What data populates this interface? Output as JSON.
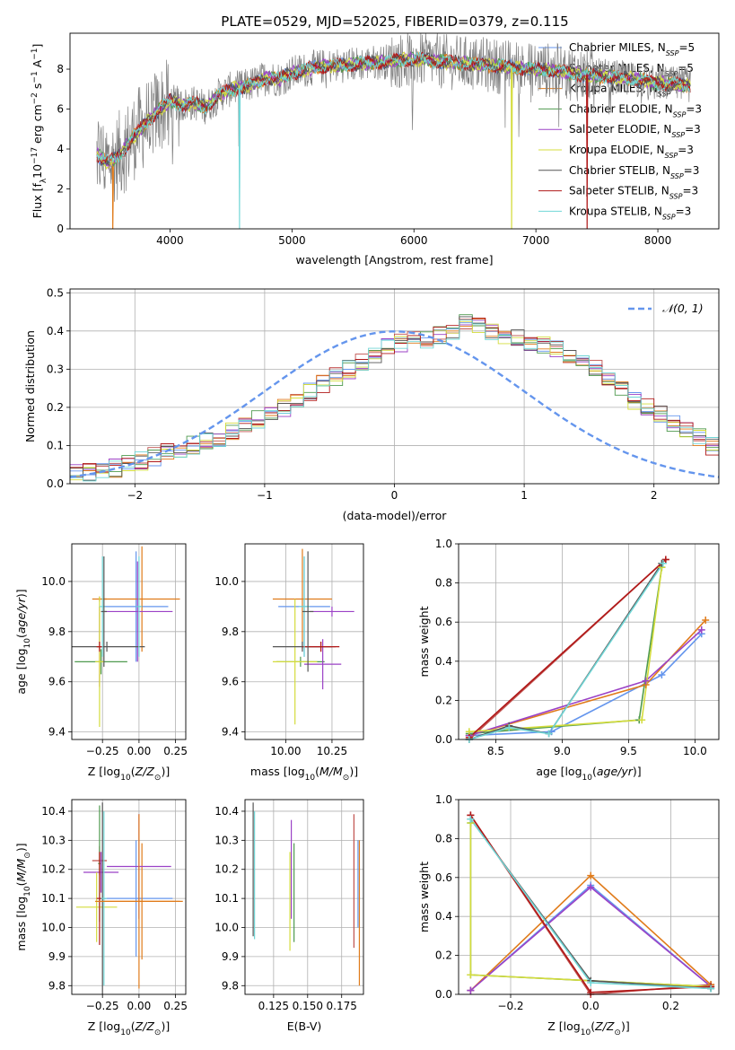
{
  "figure": {
    "title": "PLATE=0529, MJD=52025, FIBERID=0379, z=0.115"
  },
  "series_styles": [
    {
      "key": "ChMi",
      "color": "#6495ed"
    },
    {
      "key": "SaMi",
      "color": "#c0504d"
    },
    {
      "key": "KrMi",
      "color": "#e07b1a"
    },
    {
      "key": "ChEl",
      "color": "#4f9a4f"
    },
    {
      "key": "SaEl",
      "color": "#9b42c6"
    },
    {
      "key": "KrEl",
      "color": "#d4dc3c"
    },
    {
      "key": "ChSt",
      "color": "#555555"
    },
    {
      "key": "SaSt",
      "color": "#b01818"
    },
    {
      "key": "KrSt",
      "color": "#70d6d6"
    }
  ],
  "spectrum_legend": {
    "entries": [
      {
        "prefix": "Chabrier MILES, N",
        "sub": "SSP",
        "suffix": "=5"
      },
      {
        "prefix": "Salpeter MILES, N",
        "sub": "SSP",
        "suffix": "=5"
      },
      {
        "prefix": "Kroupa MILES, N",
        "sub": "SSP",
        "suffix": "=5"
      },
      {
        "prefix": "Chabrier ELODIE, N",
        "sub": "SSP",
        "suffix": "=3"
      },
      {
        "prefix": "Salpeter ELODIE, N",
        "sub": "SSP",
        "suffix": "=3"
      },
      {
        "prefix": "Kroupa ELODIE, N",
        "sub": "SSP",
        "suffix": "=3"
      },
      {
        "prefix": "Chabrier STELIB, N",
        "sub": "SSP",
        "suffix": "=3"
      },
      {
        "prefix": "Salpeter STELIB, N",
        "sub": "SSP",
        "suffix": "=3"
      },
      {
        "prefix": "Kroupa STELIB, N",
        "sub": "SSP",
        "suffix": "=3"
      }
    ]
  },
  "chart_data": [
    {
      "id": "spectrum",
      "type": "line",
      "xlabel": "wavelength [Angstrom, rest frame]",
      "ylabel": "Flux [f",
      "ylabel_parts": {
        "a": "Flux [f",
        "a_sub": "λ",
        "b": "10",
        "b_sup": "−17",
        "c": " erg cm",
        "c_sup": "−2",
        "d": " s",
        "d_sup": "−1",
        "e": " A",
        "e_sup": "−1",
        "f": "]"
      },
      "xlim": [
        3180,
        8500
      ],
      "ylim": [
        0,
        9.8
      ],
      "xticks": [
        4000,
        5000,
        6000,
        7000,
        8000
      ],
      "yticks": [
        0,
        2,
        4,
        6,
        8
      ],
      "data_color": "#808080",
      "model_shape": [
        [
          3400,
          3.7
        ],
        [
          3500,
          3.3
        ],
        [
          3600,
          3.8
        ],
        [
          3700,
          4.6
        ],
        [
          3800,
          5.3
        ],
        [
          3900,
          5.9
        ],
        [
          4000,
          6.4
        ],
        [
          4100,
          6.2
        ],
        [
          4200,
          6.3
        ],
        [
          4300,
          6.1
        ],
        [
          4400,
          6.7
        ],
        [
          4500,
          7.0
        ],
        [
          4600,
          7.1
        ],
        [
          4700,
          7.3
        ],
        [
          4800,
          7.6
        ],
        [
          4900,
          7.5
        ],
        [
          5000,
          7.8
        ],
        [
          5200,
          8.1
        ],
        [
          5400,
          8.2
        ],
        [
          5600,
          8.3
        ],
        [
          5800,
          8.4
        ],
        [
          6000,
          8.5
        ],
        [
          6200,
          8.4
        ],
        [
          6400,
          8.3
        ],
        [
          6600,
          8.2
        ],
        [
          6800,
          8.1
        ],
        [
          7000,
          8.0
        ],
        [
          7200,
          7.9
        ],
        [
          7400,
          7.7
        ],
        [
          7600,
          7.6
        ],
        [
          7800,
          7.5
        ],
        [
          8000,
          7.3
        ],
        [
          8200,
          7.2
        ],
        [
          8270,
          7.2
        ]
      ],
      "model_dips": [
        {
          "series": "KrSt",
          "x": 4570,
          "y": 0
        },
        {
          "series": "KrMi",
          "x": 3530,
          "y": 0
        },
        {
          "series": "SaSt",
          "x": 7420,
          "y": 0
        },
        {
          "series": "KrEl",
          "x": 6800,
          "y": 0
        }
      ]
    },
    {
      "id": "residual_hist",
      "type": "histogram",
      "xlabel": "(data-model)/error",
      "ylabel": "Normed distribution",
      "xlim": [
        -2.5,
        2.5
      ],
      "ylim": [
        0,
        0.51
      ],
      "xticks": [
        -2,
        -1,
        0,
        1,
        2
      ],
      "yticks": [
        0,
        0.1,
        0.2,
        0.3,
        0.4,
        0.5
      ],
      "bin_width": 0.1,
      "bin_start": -2.5,
      "reference": {
        "label": "𝒩(0, 1)",
        "mu": 0,
        "sigma": 1,
        "color": "#6495ed"
      },
      "baseline": [
        0.03,
        0.03,
        0.03,
        0.04,
        0.05,
        0.06,
        0.07,
        0.08,
        0.09,
        0.1,
        0.11,
        0.12,
        0.14,
        0.15,
        0.17,
        0.19,
        0.2,
        0.22,
        0.24,
        0.26,
        0.28,
        0.3,
        0.32,
        0.34,
        0.36,
        0.37,
        0.38,
        0.38,
        0.39,
        0.4,
        0.43,
        0.42,
        0.4,
        0.39,
        0.38,
        0.37,
        0.36,
        0.35,
        0.34,
        0.32,
        0.3,
        0.27,
        0.25,
        0.22,
        0.2,
        0.18,
        0.16,
        0.14,
        0.12,
        0.1
      ]
    },
    {
      "id": "age_vs_Z",
      "type": "errorbar",
      "xlabel": "Z [log10(Z/Z⊙)]",
      "ylabel": "age  [log10(age/yr)]",
      "xlim": [
        -0.46,
        0.32
      ],
      "ylim": [
        9.37,
        10.15
      ],
      "xticks": [
        -0.25,
        0.0,
        0.25
      ],
      "yticks": [
        9.4,
        9.6,
        9.8,
        10.0
      ],
      "points": [
        {
          "series": "ChMi",
          "x": -0.02,
          "y": 9.9,
          "xerr": 0.22,
          "yerr": 0.22
        },
        {
          "series": "SaMi",
          "x": -0.27,
          "y": 9.74,
          "xerr": 0.02,
          "yerr": 0.16
        },
        {
          "series": "KrMi",
          "x": -0.27,
          "y": 9.93,
          "xerr": 0.05,
          "yerr": 0.01
        },
        {
          "series": "KrMi",
          "x": 0.02,
          "y": 9.93,
          "xerr": 0.26,
          "yerr": 0.21
        },
        {
          "series": "ChEl",
          "x": -0.26,
          "y": 9.68,
          "xerr": 0.18,
          "yerr": 0.05
        },
        {
          "series": "SaEl",
          "x": -0.01,
          "y": 9.88,
          "xerr": 0.24,
          "yerr": 0.2
        },
        {
          "series": "KrEl",
          "x": -0.27,
          "y": 9.68,
          "xerr": 0.03,
          "yerr": 0.26
        },
        {
          "series": "ChSt",
          "x": -0.22,
          "y": 9.74,
          "xerr": 0.26,
          "yerr": 0.02
        },
        {
          "series": "SaSt",
          "x": -0.27,
          "y": 9.74,
          "xerr": 0.02,
          "yerr": 0.02
        },
        {
          "series": "KrSt",
          "x": -0.25,
          "y": 9.9,
          "xerr": 0.02,
          "yerr": 0.2
        },
        {
          "series": "KrSt",
          "x": 0.0,
          "y": 9.9,
          "xerr": 0.02,
          "yerr": 0.2
        },
        {
          "series": "ChSt",
          "x": -0.24,
          "y": 9.88,
          "xerr": 0.02,
          "yerr": 0.22
        }
      ]
    },
    {
      "id": "age_vs_mass",
      "type": "errorbar",
      "xlabel": "mass [log10(M/M⊙)]",
      "ylabel": "",
      "xlim": [
        9.78,
        10.42
      ],
      "ylim": [
        9.37,
        10.15
      ],
      "xticks": [
        10.0,
        10.25
      ],
      "yticks": [
        9.4,
        9.6,
        9.8,
        10.0
      ],
      "points": [
        {
          "series": "ChMi",
          "x": 10.1,
          "y": 9.9,
          "xerr": 0.14,
          "yerr": 0.2
        },
        {
          "series": "SaMi",
          "x": 10.19,
          "y": 9.74,
          "xerr": 0.08,
          "yerr": 0.02
        },
        {
          "series": "KrMi",
          "x": 10.09,
          "y": 9.93,
          "xerr": 0.16,
          "yerr": 0.2
        },
        {
          "series": "ChEl",
          "x": 10.08,
          "y": 9.68,
          "xerr": 0.13,
          "yerr": 0.02
        },
        {
          "series": "SaEl",
          "x": 10.2,
          "y": 9.67,
          "xerr": 0.1,
          "yerr": 0.1
        },
        {
          "series": "KrEl",
          "x": 10.05,
          "y": 9.68,
          "xerr": 0.12,
          "yerr": 0.25
        },
        {
          "series": "ChSt",
          "x": 10.09,
          "y": 9.74,
          "xerr": 0.16,
          "yerr": 0.02
        },
        {
          "series": "SaSt",
          "x": 10.19,
          "y": 9.74,
          "xerr": 0.1,
          "yerr": 0.02
        },
        {
          "series": "KrSt",
          "x": 10.1,
          "y": 9.9,
          "xerr": 0.03,
          "yerr": 0.2
        },
        {
          "series": "SaEl",
          "x": 10.25,
          "y": 9.88,
          "xerr": 0.12,
          "yerr": 0.02
        },
        {
          "series": "ChSt",
          "x": 10.12,
          "y": 9.88,
          "xerr": 0.03,
          "yerr": 0.24
        }
      ]
    },
    {
      "id": "massweight_vs_age",
      "type": "line",
      "xlabel": "age  [log10(age/yr)]",
      "ylabel": "mass weight",
      "xlim": [
        8.22,
        10.18
      ],
      "ylim": [
        0,
        1.0
      ],
      "xticks": [
        8.5,
        9.0,
        9.5,
        10.0
      ],
      "yticks": [
        0.0,
        0.2,
        0.4,
        0.6,
        0.8,
        1.0
      ],
      "series": [
        {
          "series": "ChMi",
          "x": [
            8.3,
            8.92,
            9.75,
            10.05
          ],
          "y": [
            0.02,
            0.04,
            0.33,
            0.54
          ]
        },
        {
          "series": "SaMi",
          "x": [
            8.3,
            9.78
          ],
          "y": [
            0.0,
            0.92
          ]
        },
        {
          "series": "KrMi",
          "x": [
            8.3,
            9.63,
            10.08
          ],
          "y": [
            0.02,
            0.28,
            0.61
          ]
        },
        {
          "series": "ChEl",
          "x": [
            8.3,
            9.58,
            9.75
          ],
          "y": [
            0.03,
            0.1,
            0.88
          ]
        },
        {
          "series": "SaEl",
          "x": [
            8.3,
            9.63,
            10.05
          ],
          "y": [
            0.02,
            0.3,
            0.56
          ]
        },
        {
          "series": "KrEl",
          "x": [
            8.3,
            9.6,
            9.75
          ],
          "y": [
            0.04,
            0.1,
            0.88
          ]
        },
        {
          "series": "ChSt",
          "x": [
            8.3,
            8.6,
            8.9,
            9.75
          ],
          "y": [
            0.0,
            0.07,
            0.03,
            0.9
          ]
        },
        {
          "series": "SaSt",
          "x": [
            8.3,
            9.78
          ],
          "y": [
            0.01,
            0.92
          ]
        },
        {
          "series": "KrSt",
          "x": [
            8.3,
            8.6,
            8.9,
            9.76
          ],
          "y": [
            0.0,
            0.06,
            0.03,
            0.9
          ]
        }
      ]
    },
    {
      "id": "mass_vs_Z",
      "type": "errorbar",
      "xlabel": "Z [log10(Z/Z⊙)]",
      "ylabel": "mass [log10(M/M⊙)]",
      "xlim": [
        -0.46,
        0.32
      ],
      "ylim": [
        9.77,
        10.44
      ],
      "xticks": [
        -0.25,
        0.0,
        0.25
      ],
      "yticks": [
        9.8,
        9.9,
        10.0,
        10.1,
        10.2,
        10.3,
        10.4
      ],
      "points": [
        {
          "series": "ChMi",
          "x": -0.02,
          "y": 10.1,
          "xerr": 0.25,
          "yerr": 0.2
        },
        {
          "series": "SaMi",
          "x": -0.27,
          "y": 10.23,
          "xerr": 0.05,
          "yerr": 0.05
        },
        {
          "series": "KrMi",
          "x": 0.02,
          "y": 10.09,
          "xerr": 0.26,
          "yerr": 0.2
        },
        {
          "series": "ChEl",
          "x": -0.27,
          "y": 10.22,
          "xerr": 0.01,
          "yerr": 0.2
        },
        {
          "series": "SaEl",
          "x": -0.26,
          "y": 10.19,
          "xerr": 0.12,
          "yerr": 0.07
        },
        {
          "series": "KrEl",
          "x": -0.29,
          "y": 10.07,
          "xerr": 0.14,
          "yerr": 0.12
        },
        {
          "series": "ChSt",
          "x": -0.25,
          "y": 10.1,
          "xerr": 0.02,
          "yerr": 0.33
        },
        {
          "series": "SaSt",
          "x": -0.27,
          "y": 10.1,
          "xerr": 0.02,
          "yerr": 0.16
        },
        {
          "series": "KrSt",
          "x": -0.24,
          "y": 10.1,
          "xerr": 0.02,
          "yerr": 0.3
        },
        {
          "series": "SaEl",
          "x": 0.0,
          "y": 10.21,
          "xerr": 0.22,
          "yerr": 0.18
        },
        {
          "series": "KrMi",
          "x": 0.0,
          "y": 10.09,
          "xerr": 0.3,
          "yerr": 0.3
        }
      ]
    },
    {
      "id": "mass_vs_ebv",
      "type": "errorbar",
      "xlabel": "E(B-V)",
      "ylabel": "",
      "xlim": [
        0.104,
        0.191
      ],
      "ylim": [
        9.77,
        10.44
      ],
      "xticks": [
        0.125,
        0.15,
        0.175
      ],
      "yticks": [
        9.8,
        9.9,
        10.0,
        10.1,
        10.2,
        10.3,
        10.4
      ],
      "points": [
        {
          "series": "ChSt",
          "x": 0.11,
          "y": 10.2,
          "xerr": 0,
          "yerr": 0.23
        },
        {
          "series": "KrSt",
          "x": 0.111,
          "y": 10.18,
          "xerr": 0,
          "yerr": 0.22
        },
        {
          "series": "KrEl",
          "x": 0.137,
          "y": 10.09,
          "xerr": 0,
          "yerr": 0.17
        },
        {
          "series": "SaEl",
          "x": 0.138,
          "y": 10.2,
          "xerr": 0,
          "yerr": 0.17
        },
        {
          "series": "ChEl",
          "x": 0.14,
          "y": 10.12,
          "xerr": 0,
          "yerr": 0.17
        },
        {
          "series": "SaMi",
          "x": 0.184,
          "y": 10.16,
          "xerr": 0,
          "yerr": 0.23
        },
        {
          "series": "KrMi",
          "x": 0.188,
          "y": 10.05,
          "xerr": 0,
          "yerr": 0.25
        },
        {
          "series": "ChMi",
          "x": 0.187,
          "y": 10.15,
          "xerr": 0,
          "yerr": 0.15
        }
      ]
    },
    {
      "id": "massweight_vs_Z",
      "type": "line",
      "xlabel": "Z [log10(Z/Z⊙)]",
      "ylabel": "mass weight",
      "xlim": [
        -0.33,
        0.32
      ],
      "ylim": [
        0,
        1.0
      ],
      "xticks": [
        -0.2,
        0.0,
        0.2
      ],
      "yticks": [
        0.0,
        0.2,
        0.4,
        0.6,
        0.8,
        1.0
      ],
      "series": [
        {
          "series": "ChMi",
          "x": [
            -0.3,
            0.0,
            0.3
          ],
          "y": [
            0.02,
            0.56,
            0.04
          ]
        },
        {
          "series": "SaMi",
          "x": [
            -0.3,
            0.0,
            0.3
          ],
          "y": [
            0.92,
            0.0,
            0.05
          ]
        },
        {
          "series": "KrMi",
          "x": [
            -0.3,
            0.0,
            0.3
          ],
          "y": [
            0.02,
            0.61,
            0.05
          ]
        },
        {
          "series": "ChEl",
          "x": [
            -0.3,
            -0.3,
            0.3
          ],
          "y": [
            0.88,
            0.1,
            0.04
          ]
        },
        {
          "series": "SaEl",
          "x": [
            -0.3,
            0.0,
            0.3
          ],
          "y": [
            0.02,
            0.55,
            0.04
          ]
        },
        {
          "series": "KrEl",
          "x": [
            -0.3,
            -0.3,
            0.3
          ],
          "y": [
            0.88,
            0.1,
            0.04
          ]
        },
        {
          "series": "ChSt",
          "x": [
            -0.3,
            0.0,
            0.3
          ],
          "y": [
            0.9,
            0.07,
            0.03
          ]
        },
        {
          "series": "SaSt",
          "x": [
            -0.3,
            0.0,
            0.3
          ],
          "y": [
            0.92,
            0.01,
            0.04
          ]
        },
        {
          "series": "KrSt",
          "x": [
            -0.3,
            0.0,
            0.3
          ],
          "y": [
            0.9,
            0.06,
            0.03
          ]
        }
      ]
    }
  ]
}
